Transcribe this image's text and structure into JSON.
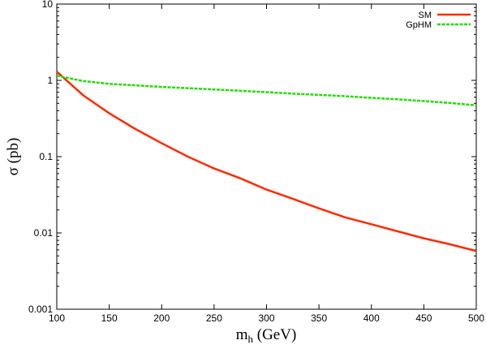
{
  "chart_data": {
    "type": "line",
    "title": "",
    "xlabel": "m",
    "xlabel_sub": "h",
    "xlabel_unit": " (GeV)",
    "ylabel": "σ (pb)",
    "xlim": [
      100,
      500
    ],
    "ylim": [
      0.001,
      10
    ],
    "yscale": "log",
    "grid": false,
    "legend_position": "top-right",
    "x_ticks": [
      100,
      150,
      200,
      250,
      300,
      350,
      400,
      450,
      500
    ],
    "x_tick_labels": [
      "100",
      "150",
      "200",
      "250",
      "300",
      "350",
      "400",
      "450",
      "500"
    ],
    "y_ticks": [
      0.001,
      0.01,
      0.1,
      1,
      10
    ],
    "y_tick_labels": [
      "0.001",
      "0.01",
      "0.1",
      "1",
      "10"
    ],
    "x": [
      100,
      125,
      150,
      175,
      200,
      225,
      250,
      275,
      300,
      325,
      350,
      375,
      400,
      425,
      450,
      475,
      500
    ],
    "series": [
      {
        "name": "SM",
        "color": "#ff2a00",
        "dash": "solid",
        "values": [
          1.3,
          0.64,
          0.37,
          0.23,
          0.15,
          0.1,
          0.07,
          0.052,
          0.037,
          0.028,
          0.021,
          0.016,
          0.013,
          0.0105,
          0.0085,
          0.0071,
          0.0058
        ]
      },
      {
        "name": "GpHM",
        "color": "#22dd00",
        "dash": "dashed",
        "values": [
          1.15,
          0.98,
          0.9,
          0.86,
          0.82,
          0.79,
          0.76,
          0.73,
          0.7,
          0.67,
          0.645,
          0.62,
          0.59,
          0.565,
          0.535,
          0.505,
          0.47
        ]
      }
    ]
  }
}
